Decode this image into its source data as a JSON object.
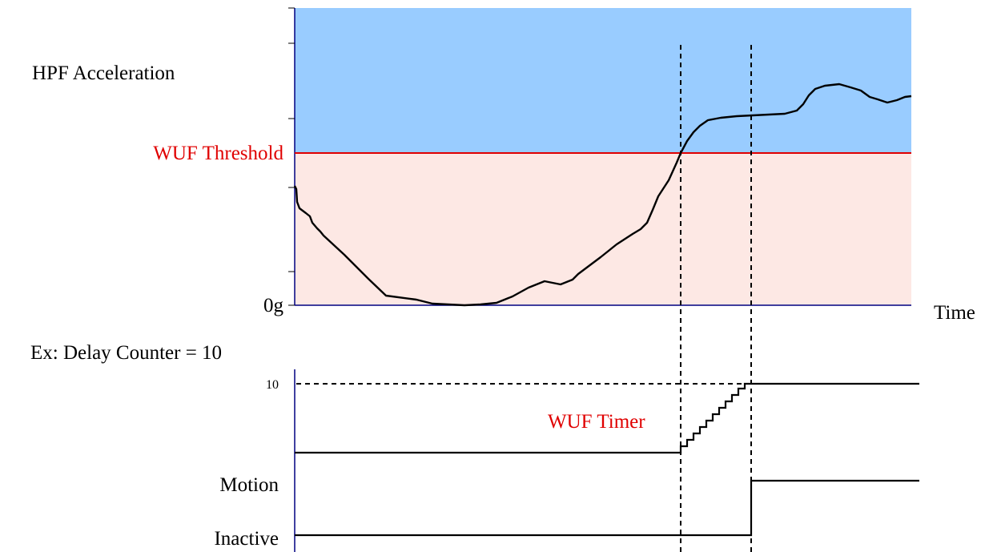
{
  "labels": {
    "y_axis_title": "HPF Acceleration",
    "threshold": "WUF Threshold",
    "zero": "0g",
    "time": "Time",
    "delay_example": "Ex: Delay Counter = 10",
    "counter_max": "10",
    "timer": "WUF Timer",
    "state_motion": "Motion",
    "state_inactive": "Inactive"
  },
  "colors": {
    "above_threshold_fill": "#99ccff",
    "below_threshold_fill": "#fde8e4",
    "threshold_line": "#e00000",
    "axis": "#000080",
    "trace": "#000000"
  },
  "timing": {
    "delay_counter": 10,
    "steps_to_max": 10
  }
}
